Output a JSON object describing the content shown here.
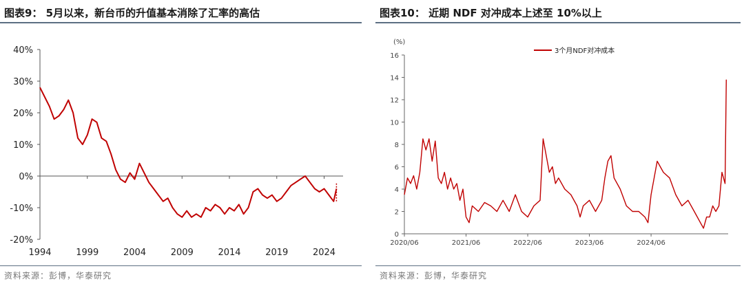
{
  "left_panel": {
    "title": "图表9： 5月以来，新台币的升值基本消除了汇率的高估",
    "source": "资料来源：彭博，华泰研究"
  },
  "right_panel": {
    "title": "图表10： 近期 NDF 对冲成本上述至 10%以上",
    "source": "资料来源：彭博，华泰研究"
  },
  "chart_data": [
    {
      "type": "line",
      "ytick_labels": [
        "40%",
        "30%",
        "20%",
        "10%",
        "0%",
        "-10%",
        "-20%"
      ],
      "yticks": [
        40,
        30,
        20,
        10,
        0,
        -10,
        -20
      ],
      "ylim": [
        -20,
        40
      ],
      "xtick_labels": [
        "1994",
        "1999",
        "2004",
        "2009",
        "2014",
        "2019",
        "2024"
      ],
      "xlim": [
        1994,
        2026
      ],
      "grid": false,
      "series": [
        {
          "color": "#c00000",
          "x": [
            1994,
            1994.5,
            1995,
            1995.5,
            1996,
            1996.5,
            1997,
            1997.5,
            1998,
            1998.5,
            1999,
            1999.5,
            2000,
            2000.5,
            2001,
            2001.5,
            2002,
            2002.5,
            2003,
            2003.5,
            2004,
            2004.5,
            2005,
            2005.5,
            2006,
            2006.5,
            2007,
            2007.5,
            2008,
            2008.5,
            2009,
            2009.5,
            2010,
            2010.5,
            2011,
            2011.5,
            2012,
            2012.5,
            2013,
            2013.5,
            2014,
            2014.5,
            2015,
            2015.5,
            2016,
            2016.5,
            2017,
            2017.5,
            2018,
            2018.5,
            2019,
            2019.5,
            2020,
            2020.5,
            2021,
            2021.5,
            2022,
            2022.5,
            2023,
            2023.5,
            2024,
            2024.5,
            2025,
            2025.3
          ],
          "values": [
            28,
            25,
            22,
            18,
            19,
            21,
            24,
            20,
            12,
            10,
            13,
            18,
            17,
            12,
            11,
            7,
            2,
            -1,
            -2,
            1,
            -1,
            4,
            1,
            -2,
            -4,
            -6,
            -8,
            -7,
            -10,
            -12,
            -13,
            -11,
            -13,
            -12,
            -13,
            -10,
            -11,
            -9,
            -10,
            -12,
            -10,
            -11,
            -9,
            -12,
            -10,
            -5,
            -4,
            -6,
            -7,
            -6,
            -8,
            -7,
            -5,
            -3,
            -2,
            -1,
            0,
            -2,
            -4,
            -5,
            -4,
            -6,
            -8,
            -4
          ]
        },
        {
          "color": "#c00000",
          "style": "dotted",
          "x": [
            2025.3,
            2025.3
          ],
          "values": [
            -8,
            -2
          ]
        }
      ]
    },
    {
      "type": "line",
      "yunit": "(%)",
      "ytick_labels": [
        "16",
        "14",
        "12",
        "10",
        "8",
        "6",
        "4",
        "2",
        "0"
      ],
      "yticks": [
        16,
        14,
        12,
        10,
        8,
        6,
        4,
        2,
        0
      ],
      "ylim": [
        0,
        16
      ],
      "xtick_labels": [
        "2020/06",
        "2021/06",
        "2022/06",
        "2023/06",
        "2024/06"
      ],
      "xticks": [
        2020.5,
        2021.5,
        2022.5,
        2023.5,
        2024.5
      ],
      "xlim": [
        2020.5,
        2025.75
      ],
      "legend": "top-left",
      "grid": false,
      "series": [
        {
          "name": "3个月NDF对冲成本",
          "color": "#c00000",
          "x": [
            2020.5,
            2020.55,
            2020.6,
            2020.65,
            2020.7,
            2020.75,
            2020.8,
            2020.85,
            2020.9,
            2020.95,
            2021.0,
            2021.05,
            2021.1,
            2021.15,
            2021.2,
            2021.25,
            2021.3,
            2021.35,
            2021.4,
            2021.45,
            2021.5,
            2021.55,
            2021.6,
            2021.7,
            2021.8,
            2021.9,
            2022.0,
            2022.1,
            2022.2,
            2022.3,
            2022.4,
            2022.5,
            2022.6,
            2022.7,
            2022.75,
            2022.8,
            2022.85,
            2022.9,
            2022.95,
            2023.0,
            2023.1,
            2023.2,
            2023.3,
            2023.35,
            2023.4,
            2023.5,
            2023.6,
            2023.7,
            2023.75,
            2023.8,
            2023.85,
            2023.9,
            2024.0,
            2024.1,
            2024.2,
            2024.3,
            2024.4,
            2024.45,
            2024.5,
            2024.6,
            2024.7,
            2024.8,
            2024.9,
            2025.0,
            2025.1,
            2025.2,
            2025.3,
            2025.35,
            2025.4,
            2025.45,
            2025.5,
            2025.55,
            2025.6,
            2025.65,
            2025.7,
            2025.72
          ],
          "values": [
            3.5,
            5.0,
            4.5,
            5.2,
            4.0,
            5.5,
            8.5,
            7.5,
            8.5,
            6.5,
            8.3,
            5.0,
            4.5,
            5.5,
            4.0,
            5.0,
            4.0,
            4.5,
            3.0,
            4.0,
            1.5,
            1.0,
            2.5,
            2.0,
            2.8,
            2.5,
            2.0,
            3.0,
            2.0,
            3.5,
            2.0,
            1.5,
            2.5,
            3.0,
            8.5,
            7.0,
            5.5,
            6.0,
            4.5,
            5.0,
            4.0,
            3.5,
            2.5,
            1.5,
            2.5,
            3.0,
            2.0,
            3.0,
            5.0,
            6.5,
            7.0,
            5.0,
            4.0,
            2.5,
            2.0,
            2.0,
            1.5,
            1.0,
            3.5,
            6.5,
            5.5,
            5.0,
            3.5,
            2.5,
            3.0,
            2.0,
            1.0,
            0.5,
            1.5,
            1.5,
            2.5,
            2.0,
            2.5,
            5.5,
            4.5,
            13.8
          ]
        }
      ]
    }
  ]
}
